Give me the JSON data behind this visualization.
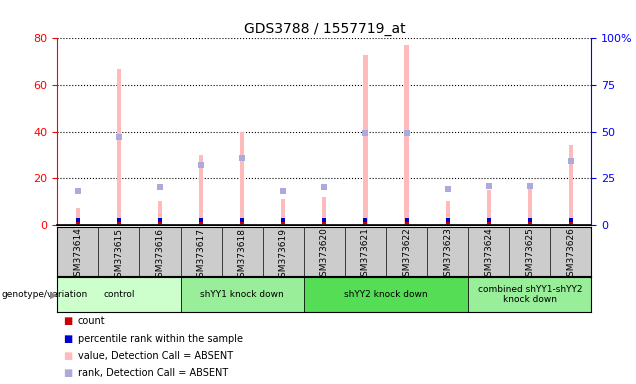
{
  "title": "GDS3788 / 1557719_at",
  "samples": [
    "GSM373614",
    "GSM373615",
    "GSM373616",
    "GSM373617",
    "GSM373618",
    "GSM373619",
    "GSM373620",
    "GSM373621",
    "GSM373622",
    "GSM373623",
    "GSM373624",
    "GSM373625",
    "GSM373626"
  ],
  "absent_count_values": [
    7,
    67,
    10,
    30,
    40,
    11,
    12,
    73,
    77,
    10,
    15,
    16,
    34
  ],
  "absent_rank_values": [
    18,
    47,
    20,
    32,
    36,
    18,
    20,
    49,
    49,
    19,
    21,
    21,
    34
  ],
  "groups": [
    {
      "label": "control",
      "start": 0,
      "end": 3,
      "color": "#ccffcc"
    },
    {
      "label": "shYY1 knock down",
      "start": 3,
      "end": 6,
      "color": "#99ee99"
    },
    {
      "label": "shYY2 knock down",
      "start": 6,
      "end": 10,
      "color": "#55dd55"
    },
    {
      "label": "combined shYY1-shYY2\nknock down",
      "start": 10,
      "end": 13,
      "color": "#99ee99"
    }
  ],
  "ylim_left": [
    0,
    80
  ],
  "ylim_right": [
    0,
    100
  ],
  "yticks_left": [
    0,
    20,
    40,
    60,
    80
  ],
  "ytick_labels_left": [
    "0",
    "20",
    "40",
    "60",
    "80"
  ],
  "yticks_right": [
    0,
    25,
    50,
    75,
    100
  ],
  "ytick_labels_right": [
    "0",
    "25",
    "50",
    "75",
    "100%"
  ],
  "absent_count_color": "#ffbbbb",
  "absent_rank_color": "#aaaadd",
  "count_color": "#cc0000",
  "percentile_color": "#0000cc",
  "bg_color": "#cccccc",
  "legend_items": [
    {
      "label": "count",
      "color": "#cc0000"
    },
    {
      "label": "percentile rank within the sample",
      "color": "#0000cc"
    },
    {
      "label": "value, Detection Call = ABSENT",
      "color": "#ffbbbb"
    },
    {
      "label": "rank, Detection Call = ABSENT",
      "color": "#aaaadd"
    }
  ]
}
